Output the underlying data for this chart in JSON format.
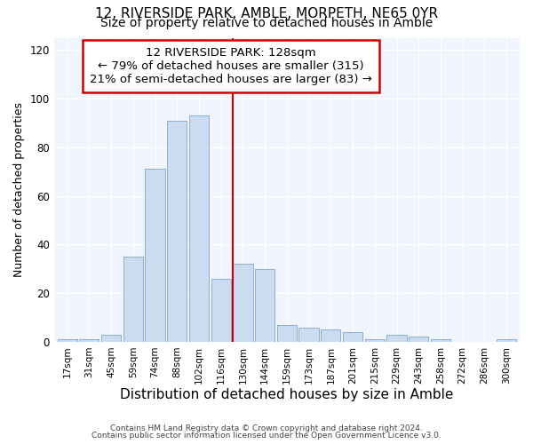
{
  "title1": "12, RIVERSIDE PARK, AMBLE, MORPETH, NE65 0YR",
  "title2": "Size of property relative to detached houses in Amble",
  "xlabel": "Distribution of detached houses by size in Amble",
  "ylabel": "Number of detached properties",
  "bar_labels": [
    "17sqm",
    "31sqm",
    "45sqm",
    "59sqm",
    "74sqm",
    "88sqm",
    "102sqm",
    "116sqm",
    "130sqm",
    "144sqm",
    "159sqm",
    "173sqm",
    "187sqm",
    "201sqm",
    "215sqm",
    "229sqm",
    "243sqm",
    "258sqm",
    "272sqm",
    "286sqm",
    "300sqm"
  ],
  "bar_values": [
    1,
    1,
    3,
    35,
    71,
    91,
    93,
    26,
    32,
    30,
    7,
    6,
    5,
    4,
    1,
    3,
    2,
    1,
    0,
    0,
    1
  ],
  "bar_color": "#ccdcf0",
  "bar_edge_color": "#8ab0d8",
  "vline_x": 8.0,
  "vline_color": "#cc0000",
  "annotation_title": "12 RIVERSIDE PARK: 128sqm",
  "annotation_line1": "← 79% of detached houses are smaller (315)",
  "annotation_line2": "21% of semi-detached houses are larger (83) →",
  "annotation_box_color": "#cc0000",
  "ylim": [
    0,
    125
  ],
  "yticks": [
    0,
    20,
    40,
    60,
    80,
    100,
    120
  ],
  "footer1": "Contains HM Land Registry data © Crown copyright and database right 2024.",
  "footer2": "Contains public sector information licensed under the Open Government Licence v3.0.",
  "bg_color": "#ffffff",
  "plot_bg_color": "#f0f4fc",
  "title1_fontsize": 11,
  "title2_fontsize": 10,
  "xlabel_fontsize": 11,
  "ylabel_fontsize": 9,
  "annotation_fontsize": 9.5
}
